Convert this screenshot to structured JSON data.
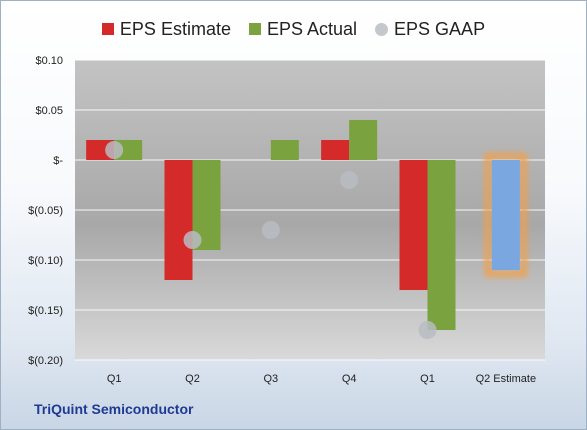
{
  "chart_data": {
    "type": "bar",
    "categories": [
      "Q1",
      "Q2",
      "Q3",
      "Q4",
      "Q1",
      "Q2 Estimate"
    ],
    "series": [
      {
        "name": "EPS Estimate",
        "color": "#d42a2a",
        "values": [
          0.02,
          -0.12,
          null,
          0.02,
          -0.13,
          -0.11
        ]
      },
      {
        "name": "EPS Actual",
        "color": "#7aa23f",
        "values": [
          0.02,
          -0.09,
          0.02,
          0.04,
          -0.17,
          null
        ]
      },
      {
        "name": "EPS GAAP",
        "color": "#b8bcc2",
        "values": [
          0.01,
          -0.08,
          -0.07,
          -0.02,
          -0.17,
          null
        ]
      }
    ],
    "forecast_bar_color": "#7aa7e0",
    "forecast_glow_color": "#f3a04a",
    "ylim": [
      -0.2,
      0.1
    ],
    "yticks": [
      0.1,
      0.05,
      0.0,
      -0.05,
      -0.1,
      -0.15,
      -0.2
    ],
    "ytick_labels": [
      "$0.10",
      "$0.05",
      "$-",
      "$(0.05)",
      "$(0.10)",
      "$(0.15)",
      "$(0.20)"
    ],
    "grid": true,
    "legend_position": "top"
  },
  "footer": {
    "company": "TriQuint Semiconductor"
  }
}
